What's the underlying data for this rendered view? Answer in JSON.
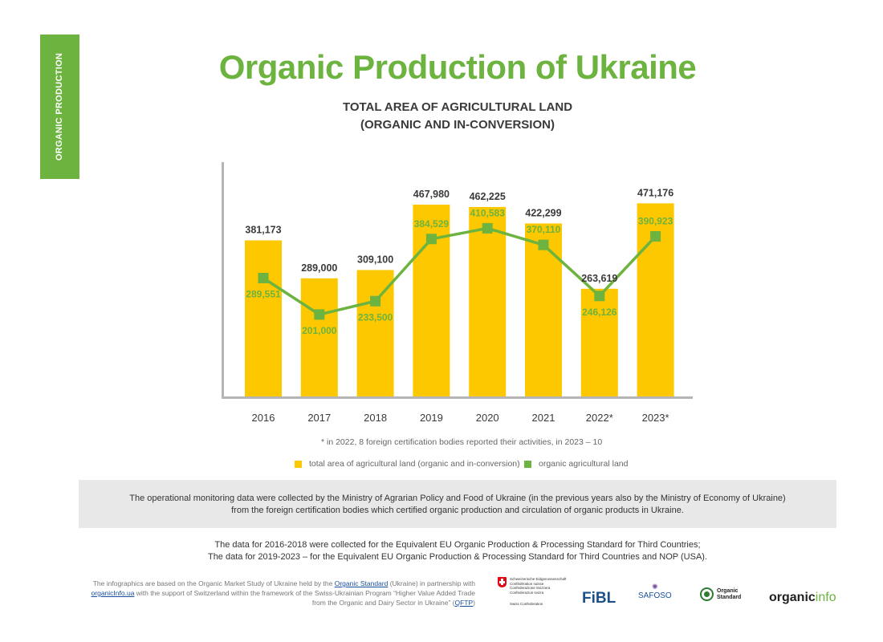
{
  "side_tab": {
    "label": "ORGANIC PRODUCTION"
  },
  "header": {
    "title": "Organic Production of Ukraine",
    "subtitle_line1": "TOTAL AREA OF AGRICULTURAL LAND",
    "subtitle_line2": "(ORGANIC AND IN-CONVERSION)"
  },
  "chart_data": {
    "type": "bar",
    "title": "TOTAL AREA OF AGRICULTURAL LAND (ORGANIC AND IN-CONVERSION)",
    "categories": [
      "2016",
      "2017",
      "2018",
      "2019",
      "2020",
      "2021",
      "2022*",
      "2023*"
    ],
    "series": [
      {
        "name": "total area of agricultural land (organic and in-conversion)",
        "type": "bar",
        "color": "#fdc800",
        "values": [
          381173,
          289000,
          309100,
          467980,
          462225,
          422299,
          263619,
          471176
        ],
        "labels": [
          "381,173",
          "289,000",
          "309,100",
          "467,980",
          "462,225",
          "422,299",
          "263,619",
          "471,176"
        ]
      },
      {
        "name": "organic agricultural land",
        "type": "line",
        "color": "#6cb33f",
        "values": [
          289551,
          201000,
          233500,
          384529,
          410583,
          370110,
          246126,
          390923
        ],
        "labels": [
          "289,551",
          "201,000",
          "233,500",
          "384,529",
          "410,583",
          "370,110",
          "246,126",
          "390,923"
        ]
      }
    ],
    "ylim": [
      0,
      520000
    ],
    "grid": false,
    "legend_position": "bottom"
  },
  "footnote": "* in 2022, 8 foreign certification bodies reported their activities, in 2023 – 10",
  "legend": {
    "item1": "total area of agricultural land (organic and in-conversion)",
    "item2": "organic agricultural land"
  },
  "info_box": {
    "text": "The operational monitoring data were collected by the Ministry of Agrarian Policy and Food of Ukraine (in the previous years also by the Ministry of Economy of Ukraine) from the foreign certification bodies which certified organic production and circulation of organic products in Ukraine."
  },
  "data_note": {
    "line1": "The data for 2016-2018 were collected for the Equivalent EU Organic Production & Processing Standard for Third Countries;",
    "line2": "The data for 2019-2023 – for the Equivalent EU Organic Production & Processing Standard for Third Countries and NOP (USA)."
  },
  "credits": {
    "part1": "The infographics are based on the Organic Market Study of Ukraine held by the ",
    "link1": "Organic Standard",
    "part2": " (Ukraine) in partnership with ",
    "link2": "organicInfo.ua",
    "part3": " with the support of Switzerland within the framework of the Swiss-Ukrainian Program “Higher Value Added Trade from the Organic and Dairy Sector in Ukraine” (",
    "link3": "QFTP",
    "part4": ")"
  },
  "logos": {
    "swiss_line1": "Schweizerische Eidgenossenschaft",
    "swiss_line2": "Confédération suisse",
    "swiss_line3": "Confederazione Svizzera",
    "swiss_line4": "Confederaziun svizra",
    "swiss_sc": "Swiss Confederation",
    "fibl": "FiBL",
    "safoso": "SAFOSO",
    "os_line1": "Organic",
    "os_line2": "Standard",
    "oi_part1": "organic",
    "oi_part2": "info"
  }
}
